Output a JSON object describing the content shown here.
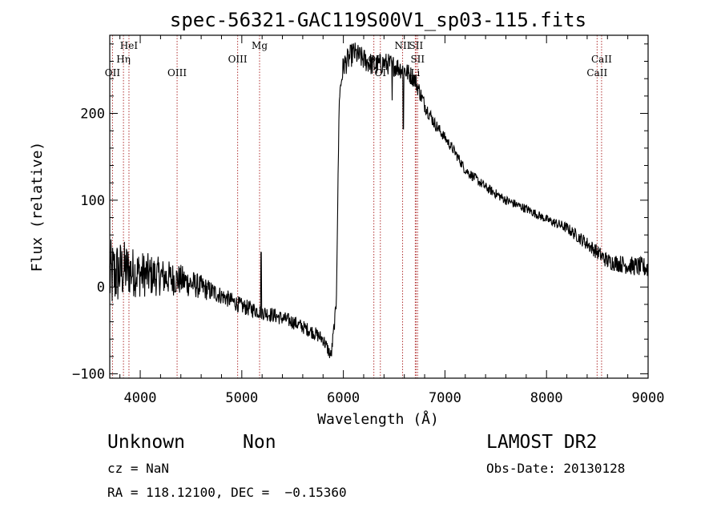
{
  "chart_data": {
    "type": "line",
    "title": "spec-56321-GAC119S00V1_sp03-115.fits",
    "xlabel": "Wavelength (Å)",
    "ylabel": "Flux (relative)",
    "xlim": [
      3700,
      9000
    ],
    "ylim": [
      -105,
      290
    ],
    "xticks": [
      4000,
      5000,
      6000,
      7000,
      8000,
      9000
    ],
    "yticks": [
      -100,
      0,
      100,
      200
    ],
    "xtick_labels": [
      "4000",
      "5000",
      "6000",
      "7000",
      "8000",
      "9000"
    ],
    "ytick_labels": [
      "−100",
      "0",
      "100",
      "200"
    ],
    "spectrum_anchors": [
      [
        3700,
        10
      ],
      [
        3760,
        15
      ],
      [
        3850,
        20
      ],
      [
        4000,
        15
      ],
      [
        4200,
        12
      ],
      [
        4400,
        8
      ],
      [
        4600,
        0
      ],
      [
        4800,
        -10
      ],
      [
        5000,
        -22
      ],
      [
        5170,
        -28
      ],
      [
        5300,
        -32
      ],
      [
        5500,
        -40
      ],
      [
        5700,
        -52
      ],
      [
        5800,
        -60
      ],
      [
        5880,
        -80
      ],
      [
        5930,
        -20
      ],
      [
        5960,
        220
      ],
      [
        6000,
        255
      ],
      [
        6100,
        270
      ],
      [
        6200,
        262
      ],
      [
        6300,
        255
      ],
      [
        6400,
        258
      ],
      [
        6500,
        255
      ],
      [
        6600,
        250
      ],
      [
        6700,
        240
      ],
      [
        6800,
        210
      ],
      [
        6900,
        188
      ],
      [
        7000,
        172
      ],
      [
        7100,
        155
      ],
      [
        7200,
        135
      ],
      [
        7400,
        115
      ],
      [
        7600,
        100
      ],
      [
        7800,
        90
      ],
      [
        8000,
        78
      ],
      [
        8200,
        68
      ],
      [
        8400,
        50
      ],
      [
        8600,
        30
      ],
      [
        8800,
        25
      ],
      [
        9000,
        22
      ]
    ],
    "noise_amplitude": [
      [
        3700,
        45
      ],
      [
        3900,
        30
      ],
      [
        4200,
        22
      ],
      [
        4800,
        10
      ],
      [
        5600,
        8
      ],
      [
        5950,
        8
      ],
      [
        6000,
        14
      ],
      [
        6600,
        12
      ],
      [
        7000,
        6
      ],
      [
        8000,
        5
      ],
      [
        8400,
        8
      ],
      [
        9000,
        12
      ]
    ],
    "spikes": [
      {
        "x": 5190,
        "y": 40
      },
      {
        "x": 6590,
        "y": 182
      },
      {
        "x": 6480,
        "y": 215
      }
    ],
    "lines": [
      {
        "name": "OII",
        "wavelength": 3727,
        "row": 3
      },
      {
        "name": "Hη",
        "wavelength": 3835,
        "row": 2
      },
      {
        "name": "HeI",
        "wavelength": 3889,
        "row": 1
      },
      {
        "name": "OIII",
        "wavelength": 4363,
        "row": 3
      },
      {
        "name": "OIII",
        "wavelength": 4959,
        "row": 2
      },
      {
        "name": "Mg",
        "wavelength": 5175,
        "row": 1
      },
      {
        "name": "OI",
        "wavelength": 6300,
        "row": 2
      },
      {
        "name": "OI",
        "wavelength": 6364,
        "row": 3
      },
      {
        "name": "NII",
        "wavelength": 6583,
        "row": 1
      },
      {
        "name": "SII",
        "wavelength": 6716,
        "row": 1
      },
      {
        "name": "SII",
        "wavelength": 6731,
        "row": 2
      },
      {
        "name": "Li",
        "wavelength": 6708,
        "row": 3
      },
      {
        "name": "CaII",
        "wavelength": 8542,
        "row": 2
      },
      {
        "name": "CaII",
        "wavelength": 8498,
        "row": 3
      }
    ]
  },
  "info": {
    "class_label": "Unknown",
    "subclass_label": "Non",
    "survey": "LAMOST DR2",
    "cz": "cz = NaN",
    "obs_date": "Obs-Date: 20130128",
    "radec": "RA = 118.12100, DEC =  −0.15360"
  },
  "colors": {
    "line_marker": "#b03030",
    "spectrum": "#000000",
    "axis": "#000000"
  }
}
